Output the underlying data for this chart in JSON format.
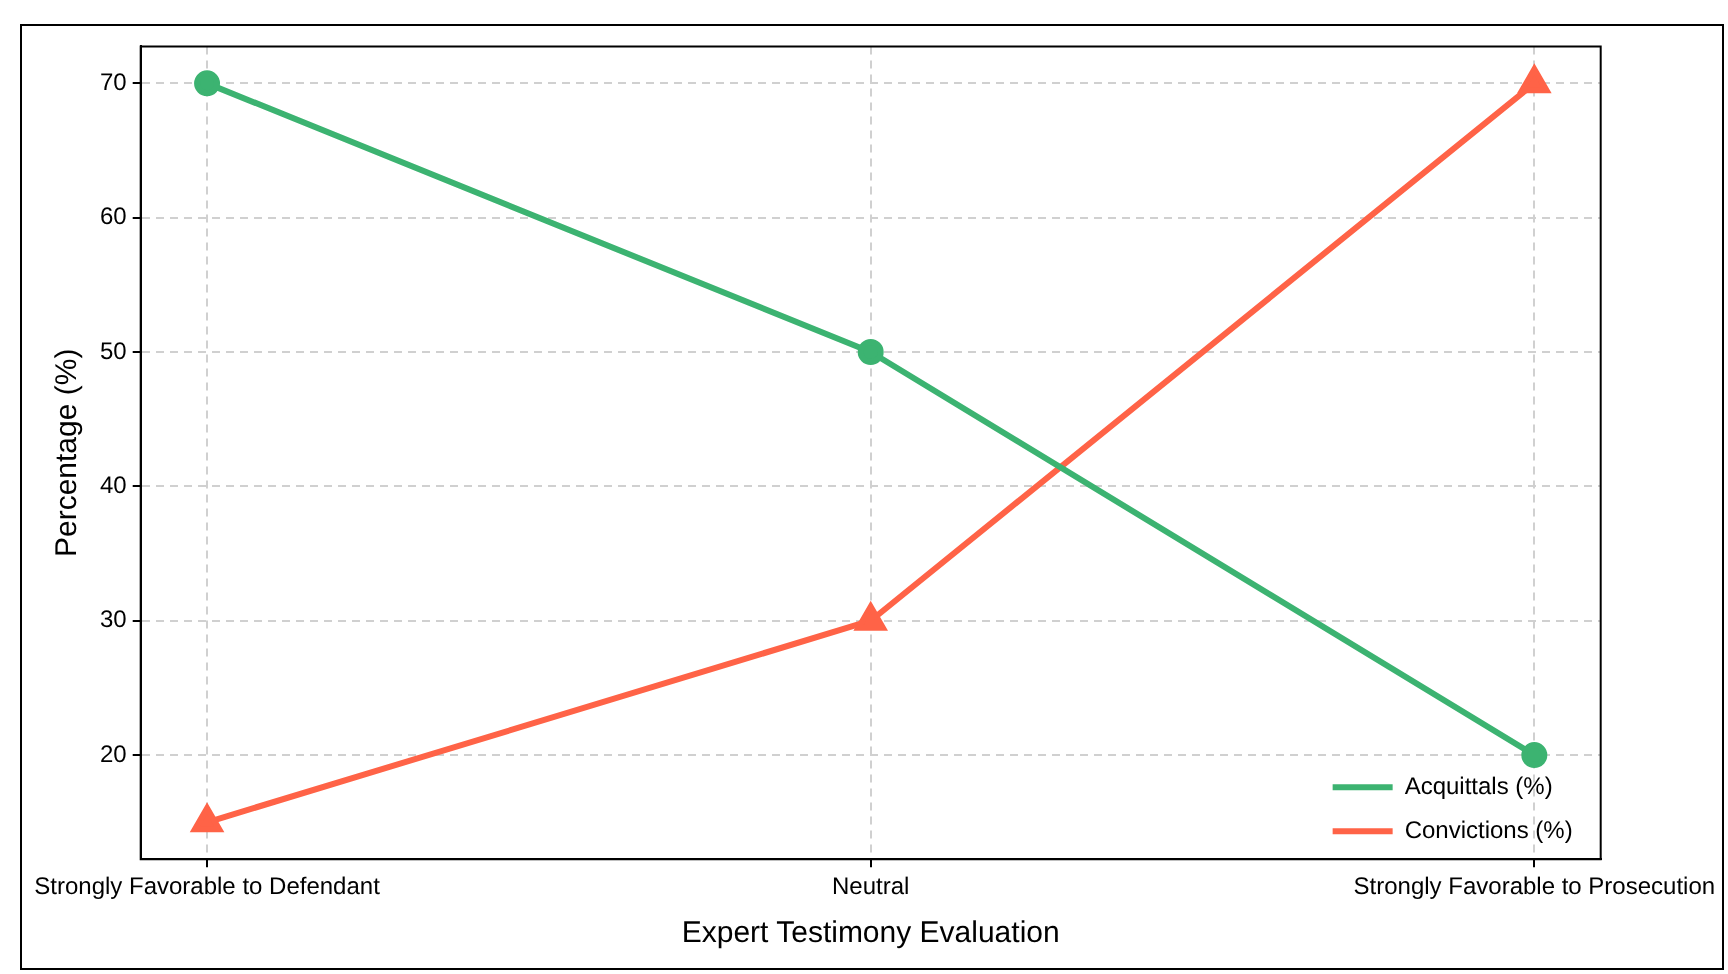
{
  "chart_data": {
    "type": "line",
    "xlabel": "Expert Testimony Evaluation",
    "ylabel": "Percentage (%)",
    "categories": [
      "Strongly Favorable to Defendant",
      "Neutral",
      "Strongly Favorable to Prosecution"
    ],
    "series": [
      {
        "name": "Acquittals (%)",
        "color": "#3cb371",
        "values": [
          70,
          50,
          20
        ],
        "marker": "circle"
      },
      {
        "name": "Convictions (%)",
        "color": "#ff6347",
        "values": [
          15,
          30,
          70
        ],
        "marker": "triangle"
      }
    ],
    "ylim": [
      12.25,
      72.75
    ],
    "yticks": [
      20,
      30,
      40,
      50,
      60,
      70
    ],
    "grid": true,
    "legend": "bottom right",
    "line_style": "solid"
  }
}
